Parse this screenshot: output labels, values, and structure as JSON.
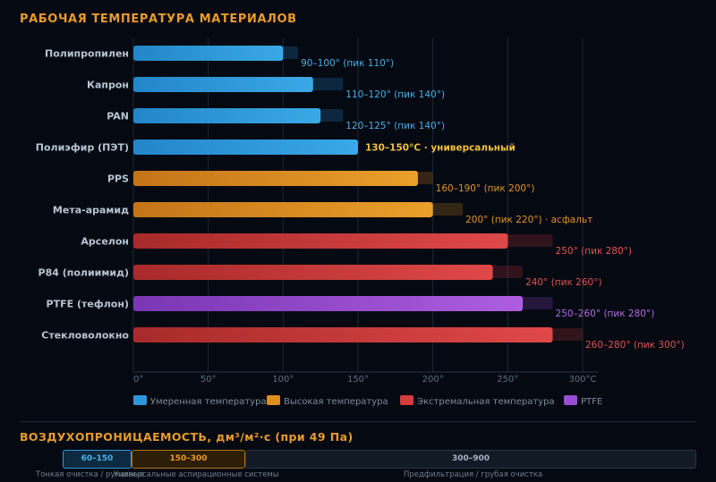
{
  "header": {
    "title": "РАБОЧАЯ ТЕМПЕРАТУРА МАТЕРИАЛОВ"
  },
  "colors": {
    "moderate": "#2e96da",
    "high": "#e08e1c",
    "extreme": "#d23d3d",
    "ptfe": "#9a4dd2",
    "accent": "#e89a2c"
  },
  "chart_data": {
    "type": "bar",
    "orientation": "horizontal",
    "title": "РАБОЧАЯ ТЕМПЕРАТУРА МАТЕРИАЛОВ",
    "xlim": [
      0,
      300
    ],
    "xticks": [
      "0°",
      "50°",
      "100°",
      "150°",
      "200°",
      "250°",
      "300°C"
    ],
    "xtick_values": [
      0,
      50,
      100,
      150,
      200,
      250,
      300
    ],
    "grid": true,
    "legend": [
      {
        "label": "Умеренная температура",
        "group": "moderate"
      },
      {
        "label": "Высокая температура",
        "group": "high"
      },
      {
        "label": "Экстремальная температура",
        "group": "extreme"
      },
      {
        "label": "PTFE",
        "group": "ptfe"
      }
    ],
    "series": [
      {
        "name": "Полипропилен",
        "value": 100,
        "peak": 110,
        "label": "90–100° (пик 110°)",
        "group": "moderate"
      },
      {
        "name": "Капрон",
        "value": 120,
        "peak": 140,
        "label": "110–120° (пик 140°)",
        "group": "moderate"
      },
      {
        "name": "PAN",
        "value": 125,
        "peak": 140,
        "label": "120–125° (пик 140°)",
        "group": "moderate"
      },
      {
        "name": "Полиэфир (ПЭТ)",
        "value": 150,
        "peak": 150,
        "label": "130–150°C · универсальный",
        "group": "moderate",
        "highlight": true
      },
      {
        "name": "PPS",
        "value": 190,
        "peak": 200,
        "label": "160–190° (пик 200°)",
        "group": "high"
      },
      {
        "name": "Мета-арамид",
        "value": 200,
        "peak": 220,
        "label": "200° (пик 220°) · асфальт",
        "group": "high"
      },
      {
        "name": "Арселон",
        "value": 250,
        "peak": 280,
        "label": "250° (пик 280°)",
        "group": "extreme"
      },
      {
        "name": "P84 (полиимид)",
        "value": 240,
        "peak": 260,
        "label": "240° (пик 260°)",
        "group": "extreme"
      },
      {
        "name": "PTFE (тефлон)",
        "value": 260,
        "peak": 280,
        "label": "250–260° (пик 280°)",
        "group": "ptfe"
      },
      {
        "name": "Стекловолокно",
        "value": 280,
        "peak": 300,
        "label": "260–280° (пик 300°)",
        "group": "extreme"
      }
    ]
  },
  "permeability": {
    "title": "ВОЗДУХОПРОНИЦАЕМОСТЬ, дм³/м²·с (при 49 Па)",
    "ranges": [
      {
        "label": "60–150",
        "note": "Тонкая очистка / рукавные"
      },
      {
        "label": "150–300",
        "note": "Универсальные аспирационные системы"
      },
      {
        "label": "300–900",
        "note": "Предфильтрация / грубая очистка"
      }
    ]
  }
}
